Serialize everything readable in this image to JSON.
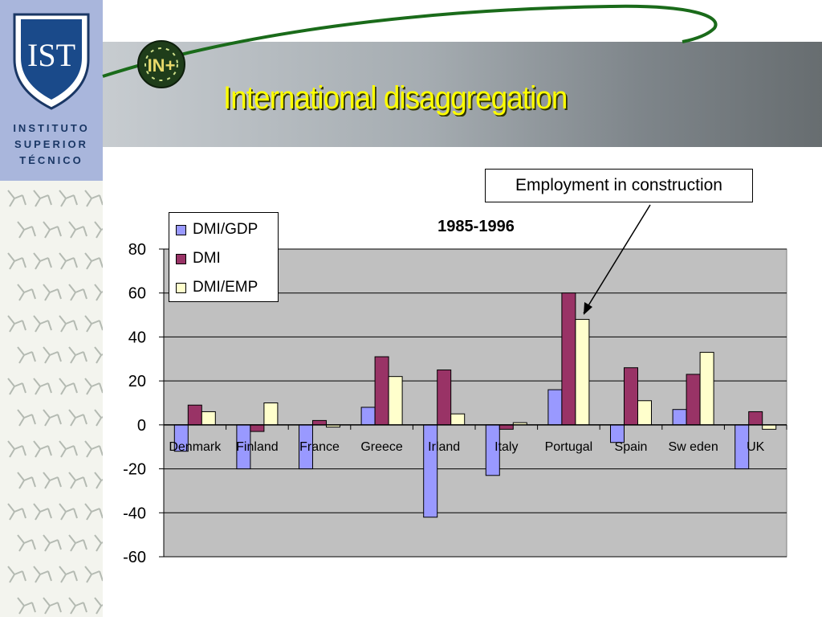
{
  "title": "International disaggregation",
  "logo": {
    "institution_lines": [
      "INSTITUTO",
      "SUPERIOR",
      "TÉCNICO"
    ],
    "shield_text": "IST",
    "badge_text": "IN+"
  },
  "annotation": {
    "text": "Employment in construction"
  },
  "colors": {
    "header_band": "#8a9095",
    "title": "#ffff00",
    "plot_background": "#c0c0c0",
    "dmi_gdp": "#9999ff",
    "dmi": "#993366",
    "dmi_emp": "#ffffcc"
  },
  "chart_data": {
    "type": "bar",
    "title": "1985-1996",
    "categories": [
      "Denmark",
      "Finland",
      "France",
      "Greece",
      "Irland",
      "Italy",
      "Portugal",
      "Spain",
      "Sw eden",
      "UK"
    ],
    "series": [
      {
        "name": "DMI/GDP",
        "color": "#9999ff",
        "values": [
          -12,
          -20,
          -20,
          8,
          -42,
          -23,
          16,
          -8,
          7,
          -20
        ]
      },
      {
        "name": "DMI",
        "color": "#993366",
        "values": [
          9,
          -3,
          2,
          31,
          25,
          -2,
          60,
          26,
          23,
          6
        ]
      },
      {
        "name": "DMI/EMP",
        "color": "#ffffcc",
        "values": [
          6,
          10,
          -1,
          22,
          5,
          1,
          48,
          11,
          33,
          -2
        ]
      }
    ],
    "ylim": [
      -60,
      80
    ],
    "yticks": [
      80,
      60,
      40,
      20,
      0,
      -20,
      -40,
      -60
    ],
    "grid": true,
    "legend_position": "top-left",
    "xlabel": "",
    "ylabel": ""
  }
}
